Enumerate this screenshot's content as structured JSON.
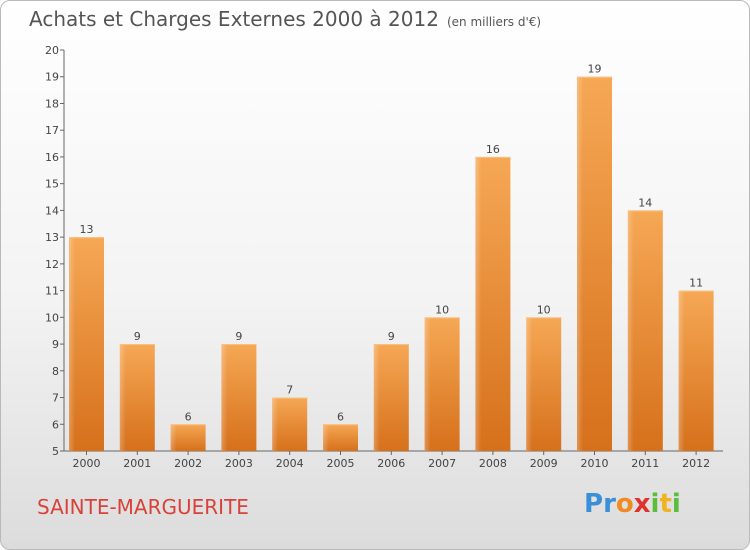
{
  "title": "Achats et Charges Externes 2000 à 2012",
  "unit_label": "(en milliers d'€)",
  "commune": "SAINTE-MARGUERITE",
  "logo": {
    "text": "Proxiti",
    "letters": [
      "P",
      "r",
      "o",
      "x",
      "i",
      "t",
      "i"
    ]
  },
  "colors": {
    "bar_light": "#f5a552",
    "bar_dark": "#d8711c",
    "title": "#555555",
    "commune": "#d9423a"
  },
  "chart_data": {
    "type": "bar",
    "title": "Achats et Charges Externes 2000 à 2012",
    "xlabel": "",
    "ylabel": "",
    "categories": [
      "2000",
      "2001",
      "2002",
      "2003",
      "2004",
      "2005",
      "2006",
      "2007",
      "2008",
      "2009",
      "2010",
      "2011",
      "2012"
    ],
    "values": [
      13,
      9,
      6,
      9,
      7,
      6,
      9,
      10,
      16,
      10,
      19,
      14,
      11
    ],
    "ylim": [
      5,
      20
    ],
    "yticks": [
      5,
      6,
      7,
      8,
      9,
      10,
      11,
      12,
      13,
      14,
      15,
      16,
      17,
      18,
      19,
      20
    ],
    "grid": false,
    "data_labels": true
  }
}
